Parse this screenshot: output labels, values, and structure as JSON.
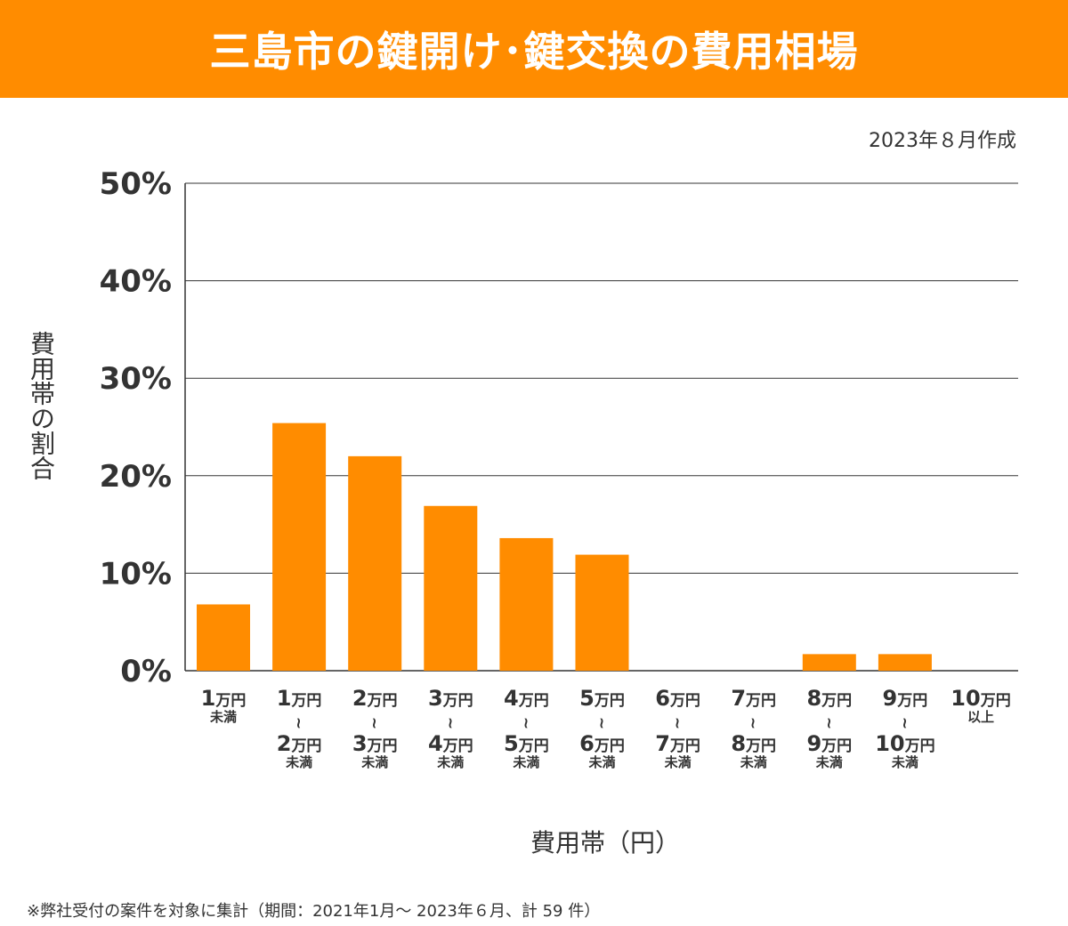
{
  "header": {
    "title": "三島市の鍵開け･鍵交換の費用相場"
  },
  "meta": {
    "created": "2023年８月作成",
    "footnote": "※弊社受付の案件を対象に集計（期間：2021年1月～ 2023年６月、計 59 件）"
  },
  "colors": {
    "accent": "#ff8c00",
    "bar": "#ff8c00",
    "grid": "#333333",
    "text": "#333333"
  },
  "chart_data": {
    "type": "bar",
    "title": "三島市の鍵開け･鍵交換の費用相場",
    "xlabel": "費用帯（円）",
    "ylabel": "費用帯の割合",
    "ylim": [
      0,
      50
    ],
    "yticks": [
      0,
      10,
      20,
      30,
      40,
      50
    ],
    "ytick_labels": [
      "0%",
      "10%",
      "20%",
      "30%",
      "40%",
      "50%"
    ],
    "grid": true,
    "categories": [
      {
        "lines": [
          {
            "num": "1",
            "unit": "万円"
          },
          {
            "text": "未満"
          }
        ]
      },
      {
        "lines": [
          {
            "num": "1",
            "unit": "万円"
          },
          {
            "text": "〜"
          },
          {
            "num": "2",
            "unit": "万円"
          },
          {
            "text": "未満"
          }
        ]
      },
      {
        "lines": [
          {
            "num": "2",
            "unit": "万円"
          },
          {
            "text": "〜"
          },
          {
            "num": "3",
            "unit": "万円"
          },
          {
            "text": "未満"
          }
        ]
      },
      {
        "lines": [
          {
            "num": "3",
            "unit": "万円"
          },
          {
            "text": "〜"
          },
          {
            "num": "4",
            "unit": "万円"
          },
          {
            "text": "未満"
          }
        ]
      },
      {
        "lines": [
          {
            "num": "4",
            "unit": "万円"
          },
          {
            "text": "〜"
          },
          {
            "num": "5",
            "unit": "万円"
          },
          {
            "text": "未満"
          }
        ]
      },
      {
        "lines": [
          {
            "num": "5",
            "unit": "万円"
          },
          {
            "text": "〜"
          },
          {
            "num": "6",
            "unit": "万円"
          },
          {
            "text": "未満"
          }
        ]
      },
      {
        "lines": [
          {
            "num": "6",
            "unit": "万円"
          },
          {
            "text": "〜"
          },
          {
            "num": "7",
            "unit": "万円"
          },
          {
            "text": "未満"
          }
        ]
      },
      {
        "lines": [
          {
            "num": "7",
            "unit": "万円"
          },
          {
            "text": "〜"
          },
          {
            "num": "8",
            "unit": "万円"
          },
          {
            "text": "未満"
          }
        ]
      },
      {
        "lines": [
          {
            "num": "8",
            "unit": "万円"
          },
          {
            "text": "〜"
          },
          {
            "num": "9",
            "unit": "万円"
          },
          {
            "text": "未満"
          }
        ]
      },
      {
        "lines": [
          {
            "num": "9",
            "unit": "万円"
          },
          {
            "text": "〜"
          },
          {
            "num": "10",
            "unit": "万円"
          },
          {
            "text": "未満"
          }
        ]
      },
      {
        "lines": [
          {
            "num": "10",
            "unit": "万円"
          },
          {
            "text": "以上"
          }
        ]
      }
    ],
    "values": [
      6.8,
      25.4,
      22.0,
      16.9,
      13.6,
      11.9,
      0,
      0,
      1.7,
      1.7,
      0
    ]
  }
}
